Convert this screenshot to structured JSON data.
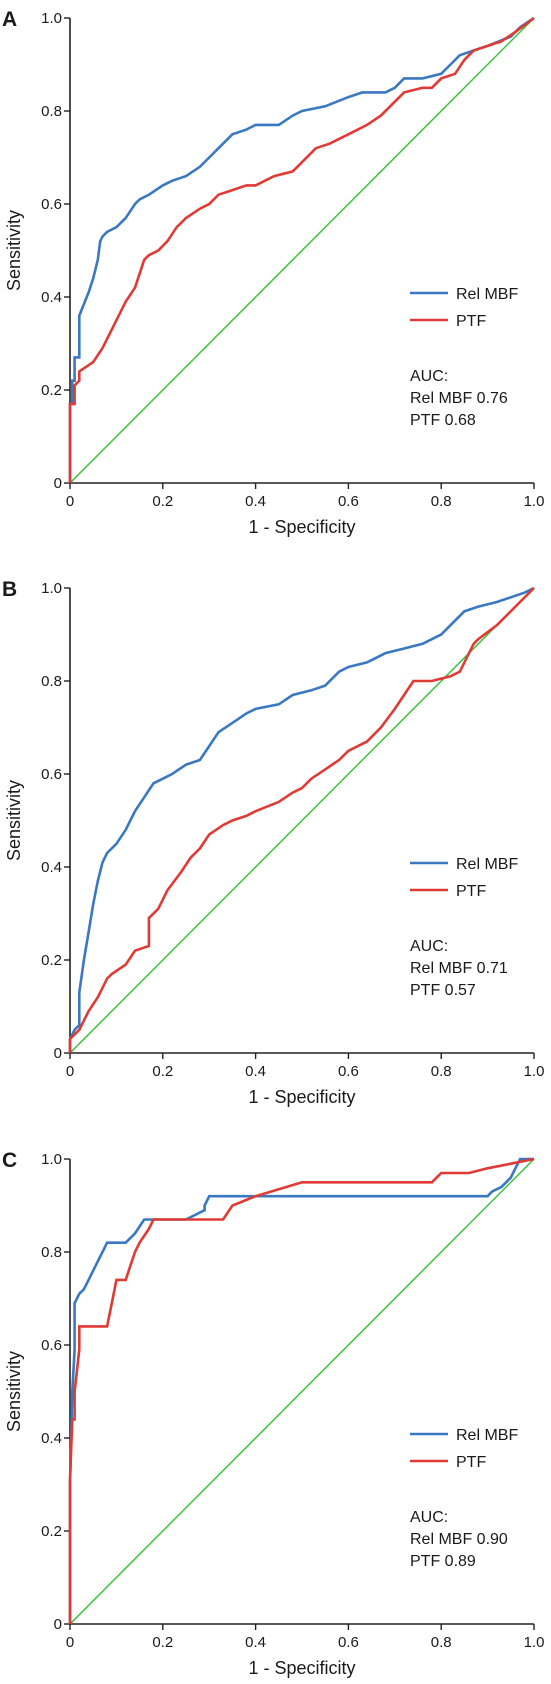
{
  "chart_data": [
    {
      "panel": "A",
      "type": "line",
      "xlabel": "1 - Specificity",
      "ylabel": "Sensitivity",
      "xlim": [
        0,
        1
      ],
      "ylim": [
        0,
        1
      ],
      "x_ticks": [
        "0",
        "0.2",
        "0.4",
        "0.6",
        "0.8",
        "1.0"
      ],
      "y_ticks": [
        "0",
        "0.2",
        "0.4",
        "0.6",
        "0.8",
        "1.0"
      ],
      "legend_position": "right",
      "auc_title": "AUC:",
      "auc_lines": [
        "Rel MBF 0.76",
        "PTF 0.68"
      ],
      "series": [
        {
          "name": "Rel MBF",
          "color": "#3a78c2",
          "x": [
            0,
            0,
            0.005,
            0.005,
            0.01,
            0.01,
            0.02,
            0.02,
            0.04,
            0.05,
            0.06,
            0.065,
            0.07,
            0.08,
            0.1,
            0.12,
            0.14,
            0.15,
            0.17,
            0.2,
            0.22,
            0.25,
            0.28,
            0.3,
            0.32,
            0.35,
            0.38,
            0.4,
            0.45,
            0.48,
            0.5,
            0.55,
            0.6,
            0.63,
            0.68,
            0.7,
            0.72,
            0.76,
            0.8,
            0.82,
            0.84,
            0.87,
            0.9,
            0.95,
            0.97,
            1.0
          ],
          "y": [
            0,
            0.17,
            0.17,
            0.22,
            0.22,
            0.27,
            0.27,
            0.36,
            0.41,
            0.44,
            0.48,
            0.52,
            0.53,
            0.54,
            0.55,
            0.57,
            0.6,
            0.61,
            0.62,
            0.64,
            0.65,
            0.66,
            0.68,
            0.7,
            0.72,
            0.75,
            0.76,
            0.77,
            0.77,
            0.79,
            0.8,
            0.81,
            0.83,
            0.84,
            0.84,
            0.85,
            0.87,
            0.87,
            0.88,
            0.9,
            0.92,
            0.93,
            0.94,
            0.96,
            0.98,
            1.0
          ]
        },
        {
          "name": "PTF",
          "color": "#e03a35",
          "x": [
            0,
            0,
            0.01,
            0.01,
            0.02,
            0.02,
            0.05,
            0.07,
            0.08,
            0.1,
            0.12,
            0.14,
            0.15,
            0.16,
            0.17,
            0.19,
            0.21,
            0.23,
            0.25,
            0.28,
            0.3,
            0.32,
            0.35,
            0.38,
            0.4,
            0.44,
            0.48,
            0.5,
            0.53,
            0.56,
            0.6,
            0.64,
            0.67,
            0.7,
            0.72,
            0.76,
            0.78,
            0.8,
            0.83,
            0.85,
            0.87,
            0.9,
            0.93,
            0.96,
            1.0
          ],
          "y": [
            0,
            0.17,
            0.17,
            0.21,
            0.22,
            0.24,
            0.26,
            0.29,
            0.31,
            0.35,
            0.39,
            0.42,
            0.45,
            0.48,
            0.49,
            0.5,
            0.52,
            0.55,
            0.57,
            0.59,
            0.6,
            0.62,
            0.63,
            0.64,
            0.64,
            0.66,
            0.67,
            0.69,
            0.72,
            0.73,
            0.75,
            0.77,
            0.79,
            0.82,
            0.84,
            0.85,
            0.85,
            0.87,
            0.88,
            0.91,
            0.93,
            0.94,
            0.95,
            0.97,
            1.0
          ]
        }
      ]
    },
    {
      "panel": "B",
      "type": "line",
      "xlabel": "1 - Specificity",
      "ylabel": "Sensitivity",
      "xlim": [
        0,
        1
      ],
      "ylim": [
        0,
        1
      ],
      "x_ticks": [
        "0",
        "0.2",
        "0.4",
        "0.6",
        "0.8",
        "1.0"
      ],
      "y_ticks": [
        "0",
        "0.2",
        "0.4",
        "0.6",
        "0.8",
        "1.0"
      ],
      "legend_position": "right",
      "auc_title": "AUC:",
      "auc_lines": [
        "Rel MBF 0.71",
        "PTF 0.57"
      ],
      "series": [
        {
          "name": "Rel MBF",
          "color": "#3a78c2",
          "x": [
            0,
            0,
            0.01,
            0.02,
            0.02,
            0.03,
            0.04,
            0.05,
            0.06,
            0.07,
            0.08,
            0.1,
            0.12,
            0.14,
            0.16,
            0.18,
            0.2,
            0.22,
            0.25,
            0.28,
            0.3,
            0.32,
            0.35,
            0.38,
            0.4,
            0.45,
            0.48,
            0.52,
            0.55,
            0.58,
            0.6,
            0.64,
            0.68,
            0.72,
            0.76,
            0.8,
            0.82,
            0.85,
            0.88,
            0.92,
            0.95,
            0.98,
            1.0
          ],
          "y": [
            0,
            0.03,
            0.05,
            0.06,
            0.13,
            0.2,
            0.26,
            0.32,
            0.37,
            0.41,
            0.43,
            0.45,
            0.48,
            0.52,
            0.55,
            0.58,
            0.59,
            0.6,
            0.62,
            0.63,
            0.66,
            0.69,
            0.71,
            0.73,
            0.74,
            0.75,
            0.77,
            0.78,
            0.79,
            0.82,
            0.83,
            0.84,
            0.86,
            0.87,
            0.88,
            0.9,
            0.92,
            0.95,
            0.96,
            0.97,
            0.98,
            0.99,
            1.0
          ]
        },
        {
          "name": "PTF",
          "color": "#e03a35",
          "x": [
            0,
            0,
            0.02,
            0.03,
            0.04,
            0.06,
            0.07,
            0.08,
            0.09,
            0.12,
            0.14,
            0.17,
            0.17,
            0.19,
            0.21,
            0.24,
            0.26,
            0.28,
            0.3,
            0.33,
            0.35,
            0.38,
            0.4,
            0.45,
            0.48,
            0.5,
            0.52,
            0.55,
            0.58,
            0.6,
            0.64,
            0.67,
            0.7,
            0.72,
            0.74,
            0.78,
            0.82,
            0.84,
            0.85,
            0.86,
            0.87,
            0.88,
            0.92,
            1.0
          ],
          "y": [
            0,
            0.03,
            0.05,
            0.07,
            0.09,
            0.12,
            0.14,
            0.16,
            0.17,
            0.19,
            0.22,
            0.23,
            0.29,
            0.31,
            0.35,
            0.39,
            0.42,
            0.44,
            0.47,
            0.49,
            0.5,
            0.51,
            0.52,
            0.54,
            0.56,
            0.57,
            0.59,
            0.61,
            0.63,
            0.65,
            0.67,
            0.7,
            0.74,
            0.77,
            0.8,
            0.8,
            0.81,
            0.82,
            0.84,
            0.86,
            0.88,
            0.89,
            0.92,
            1.0
          ]
        }
      ]
    },
    {
      "panel": "C",
      "type": "line",
      "xlabel": "1 - Specificity",
      "ylabel": "Sensitivity",
      "xlim": [
        0,
        1
      ],
      "ylim": [
        0,
        1
      ],
      "x_ticks": [
        "0",
        "0.2",
        "0.4",
        "0.6",
        "0.8",
        "1.0"
      ],
      "y_ticks": [
        "0",
        "0.2",
        "0.4",
        "0.6",
        "0.8",
        "1.0"
      ],
      "legend_position": "right",
      "auc_title": "AUC:",
      "auc_lines": [
        "Rel MBF 0.90",
        "PTF 0.89"
      ],
      "series": [
        {
          "name": "Rel MBF",
          "color": "#3a78c2",
          "x": [
            0,
            0,
            0.005,
            0.01,
            0.01,
            0.02,
            0.03,
            0.04,
            0.05,
            0.06,
            0.07,
            0.08,
            0.1,
            0.12,
            0.14,
            0.16,
            0.17,
            0.19,
            0.21,
            0.25,
            0.29,
            0.29,
            0.3,
            0.32,
            0.5,
            0.6,
            0.8,
            0.9,
            0.91,
            0.93,
            0.95,
            0.96,
            0.97,
            1.0
          ],
          "y": [
            0,
            0.3,
            0.5,
            0.59,
            0.69,
            0.71,
            0.72,
            0.74,
            0.76,
            0.78,
            0.8,
            0.82,
            0.82,
            0.82,
            0.84,
            0.87,
            0.87,
            0.87,
            0.87,
            0.87,
            0.89,
            0.9,
            0.92,
            0.92,
            0.92,
            0.92,
            0.92,
            0.92,
            0.93,
            0.94,
            0.96,
            0.98,
            1.0,
            1.0
          ]
        },
        {
          "name": "PTF",
          "color": "#e03a35",
          "x": [
            0,
            0,
            0.005,
            0.01,
            0.01,
            0.02,
            0.02,
            0.08,
            0.09,
            0.1,
            0.12,
            0.13,
            0.14,
            0.15,
            0.17,
            0.18,
            0.2,
            0.22,
            0.25,
            0.33,
            0.35,
            0.4,
            0.5,
            0.6,
            0.78,
            0.8,
            0.86,
            0.9,
            0.95,
            1.0
          ],
          "y": [
            0,
            0.31,
            0.44,
            0.44,
            0.5,
            0.59,
            0.64,
            0.64,
            0.69,
            0.74,
            0.74,
            0.77,
            0.8,
            0.82,
            0.85,
            0.87,
            0.87,
            0.87,
            0.87,
            0.87,
            0.9,
            0.92,
            0.95,
            0.95,
            0.95,
            0.97,
            0.97,
            0.98,
            0.99,
            1.0
          ]
        }
      ]
    }
  ],
  "reference_line_color": "#2fc22f"
}
